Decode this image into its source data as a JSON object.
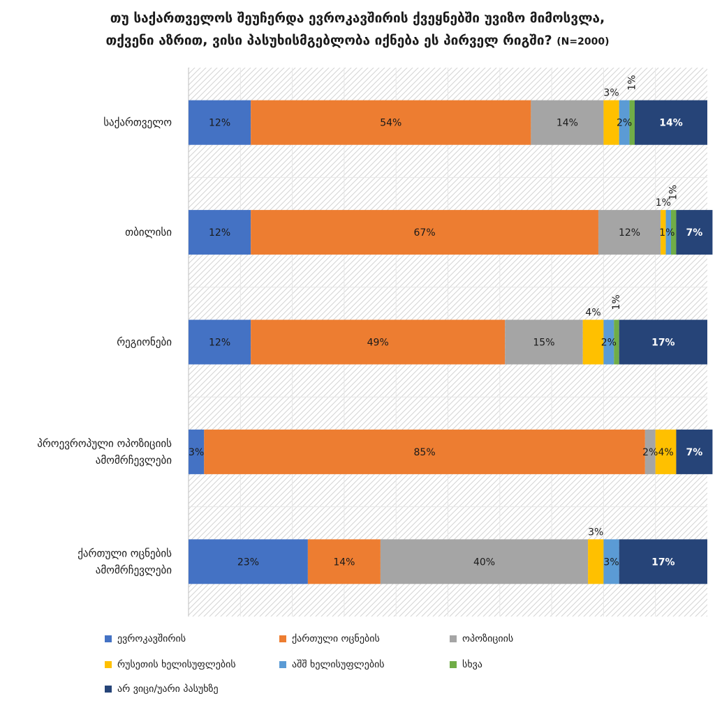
{
  "chart_data": {
    "type": "bar",
    "orientation": "horizontal",
    "stacked": true,
    "title_line1": "თუ საქართველოს შეუჩერდა ევროკავშირის ქვეყნებში უვიზო მიმოსვლა,",
    "title_line2": "თქვენი აზრით, ვისი პასუხისმგებლობა იქნება ეს  პირველ რიგში?",
    "title_n": "(N=2000)",
    "xlim": [
      0,
      100
    ],
    "grid": true,
    "legend_position": "bottom",
    "categories": [
      [
        "საქართველო"
      ],
      [
        "თბილისი"
      ],
      [
        "რეგიონები"
      ],
      [
        "პროევროპული ოპოზიციის",
        "ამომრჩევლები"
      ],
      [
        "ქართული ოცნების",
        "ამომრჩევლები"
      ]
    ],
    "series": [
      {
        "name": "ევროკავშირის",
        "color": "#4472C4",
        "values": [
          12,
          12,
          12,
          3,
          23
        ],
        "labels": [
          "12%",
          "12%",
          "12%",
          "3%",
          "23%"
        ]
      },
      {
        "name": "ქართული ოცნების",
        "color": "#ED7D31",
        "values": [
          54,
          67,
          49,
          85,
          14
        ],
        "labels": [
          "54%",
          "67%",
          "49%",
          "85%",
          "14%"
        ]
      },
      {
        "name": "ოპოზიციის",
        "color": "#A5A5A5",
        "values": [
          14,
          12,
          15,
          2,
          40
        ],
        "labels": [
          "14%",
          "12%",
          "15%",
          "2%",
          "40%"
        ]
      },
      {
        "name": "რუსეთის ხელისუფლების",
        "color": "#FFC000",
        "values": [
          3,
          1,
          4,
          4,
          3
        ],
        "labels": [
          "3%",
          "1%",
          "4%",
          "4%",
          "3%"
        ]
      },
      {
        "name": "აშშ ხელისუფლების",
        "color": "#5B9BD5",
        "values": [
          2,
          1,
          2,
          0,
          3
        ],
        "labels": [
          "2%",
          "1%",
          "2%",
          "",
          "3%"
        ]
      },
      {
        "name": "სხვა",
        "color": "#70AD47",
        "values": [
          1,
          1,
          1,
          0,
          0
        ],
        "labels": [
          "1%",
          "1%",
          "1%",
          "",
          ""
        ]
      },
      {
        "name": "არ ვიცი/უარი პასუხზე",
        "color": "#264478",
        "values": [
          14,
          7,
          17,
          7,
          17
        ],
        "labels": [
          "14%",
          "7%",
          "17%",
          "7%",
          "17%"
        ]
      }
    ]
  }
}
